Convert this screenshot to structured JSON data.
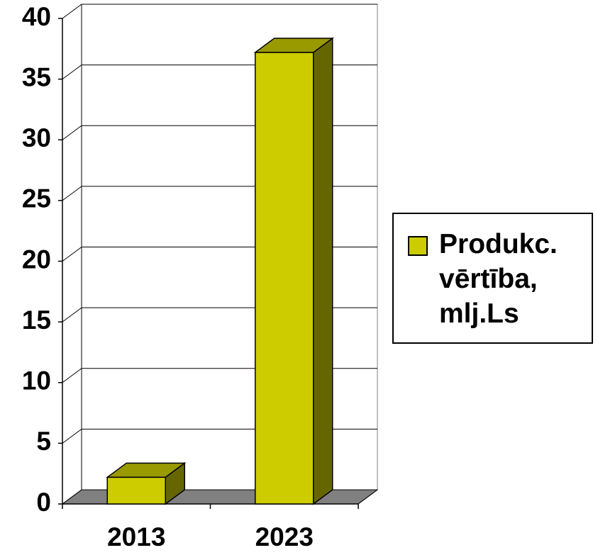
{
  "chart_data": {
    "type": "bar3d",
    "categories": [
      "2013",
      "2023"
    ],
    "series": [
      {
        "name": "Produkc. vērtība, mlj.Ls",
        "color": "#cccc00",
        "values": [
          2.2,
          37.2
        ]
      }
    ],
    "ylim": [
      0,
      40
    ],
    "yticks": [
      0,
      5,
      10,
      15,
      20,
      25,
      30,
      35,
      40
    ],
    "grid": true,
    "legend": "right"
  }
}
